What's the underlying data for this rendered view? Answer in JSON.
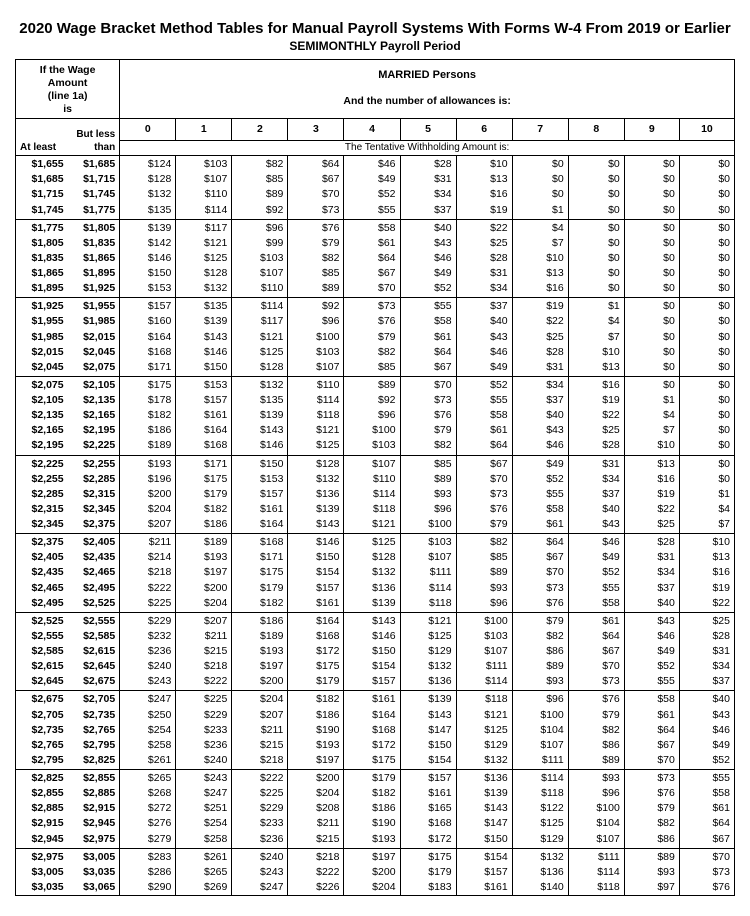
{
  "title": "2020 Wage Bracket Method Tables for Manual Payroll Systems With Forms W-4 From 2019 or Earlier",
  "subtitle": "SEMIMONTHLY Payroll Period",
  "wage_header_html": "If the <b>Wage Amount</b><br>(line 1a)<br>is",
  "filing_status": "MARRIED Persons",
  "allowance_line": "And the number of allowances is:",
  "atleast": "At least",
  "butless": "But less than",
  "tentative": "The Tentative Withholding Amount is:",
  "allowance_cols": [
    "0",
    "1",
    "2",
    "3",
    "4",
    "5",
    "6",
    "7",
    "8",
    "9",
    "10"
  ],
  "groups": [
    [
      {
        "a": "$1,655",
        "b": "$1,685",
        "v": [
          "$124",
          "$103",
          "$82",
          "$64",
          "$46",
          "$28",
          "$10",
          "$0",
          "$0",
          "$0",
          "$0"
        ]
      },
      {
        "a": "$1,685",
        "b": "$1,715",
        "v": [
          "$128",
          "$107",
          "$85",
          "$67",
          "$49",
          "$31",
          "$13",
          "$0",
          "$0",
          "$0",
          "$0"
        ]
      },
      {
        "a": "$1,715",
        "b": "$1,745",
        "v": [
          "$132",
          "$110",
          "$89",
          "$70",
          "$52",
          "$34",
          "$16",
          "$0",
          "$0",
          "$0",
          "$0"
        ]
      },
      {
        "a": "$1,745",
        "b": "$1,775",
        "v": [
          "$135",
          "$114",
          "$92",
          "$73",
          "$55",
          "$37",
          "$19",
          "$1",
          "$0",
          "$0",
          "$0"
        ]
      }
    ],
    [
      {
        "a": "$1,775",
        "b": "$1,805",
        "v": [
          "$139",
          "$117",
          "$96",
          "$76",
          "$58",
          "$40",
          "$22",
          "$4",
          "$0",
          "$0",
          "$0"
        ]
      },
      {
        "a": "$1,805",
        "b": "$1,835",
        "v": [
          "$142",
          "$121",
          "$99",
          "$79",
          "$61",
          "$43",
          "$25",
          "$7",
          "$0",
          "$0",
          "$0"
        ]
      },
      {
        "a": "$1,835",
        "b": "$1,865",
        "v": [
          "$146",
          "$125",
          "$103",
          "$82",
          "$64",
          "$46",
          "$28",
          "$10",
          "$0",
          "$0",
          "$0"
        ]
      },
      {
        "a": "$1,865",
        "b": "$1,895",
        "v": [
          "$150",
          "$128",
          "$107",
          "$85",
          "$67",
          "$49",
          "$31",
          "$13",
          "$0",
          "$0",
          "$0"
        ]
      },
      {
        "a": "$1,895",
        "b": "$1,925",
        "v": [
          "$153",
          "$132",
          "$110",
          "$89",
          "$70",
          "$52",
          "$34",
          "$16",
          "$0",
          "$0",
          "$0"
        ]
      }
    ],
    [
      {
        "a": "$1,925",
        "b": "$1,955",
        "v": [
          "$157",
          "$135",
          "$114",
          "$92",
          "$73",
          "$55",
          "$37",
          "$19",
          "$1",
          "$0",
          "$0"
        ]
      },
      {
        "a": "$1,955",
        "b": "$1,985",
        "v": [
          "$160",
          "$139",
          "$117",
          "$96",
          "$76",
          "$58",
          "$40",
          "$22",
          "$4",
          "$0",
          "$0"
        ]
      },
      {
        "a": "$1,985",
        "b": "$2,015",
        "v": [
          "$164",
          "$143",
          "$121",
          "$100",
          "$79",
          "$61",
          "$43",
          "$25",
          "$7",
          "$0",
          "$0"
        ]
      },
      {
        "a": "$2,015",
        "b": "$2,045",
        "v": [
          "$168",
          "$146",
          "$125",
          "$103",
          "$82",
          "$64",
          "$46",
          "$28",
          "$10",
          "$0",
          "$0"
        ]
      },
      {
        "a": "$2,045",
        "b": "$2,075",
        "v": [
          "$171",
          "$150",
          "$128",
          "$107",
          "$85",
          "$67",
          "$49",
          "$31",
          "$13",
          "$0",
          "$0"
        ]
      }
    ],
    [
      {
        "a": "$2,075",
        "b": "$2,105",
        "v": [
          "$175",
          "$153",
          "$132",
          "$110",
          "$89",
          "$70",
          "$52",
          "$34",
          "$16",
          "$0",
          "$0"
        ]
      },
      {
        "a": "$2,105",
        "b": "$2,135",
        "v": [
          "$178",
          "$157",
          "$135",
          "$114",
          "$92",
          "$73",
          "$55",
          "$37",
          "$19",
          "$1",
          "$0"
        ]
      },
      {
        "a": "$2,135",
        "b": "$2,165",
        "v": [
          "$182",
          "$161",
          "$139",
          "$118",
          "$96",
          "$76",
          "$58",
          "$40",
          "$22",
          "$4",
          "$0"
        ]
      },
      {
        "a": "$2,165",
        "b": "$2,195",
        "v": [
          "$186",
          "$164",
          "$143",
          "$121",
          "$100",
          "$79",
          "$61",
          "$43",
          "$25",
          "$7",
          "$0"
        ]
      },
      {
        "a": "$2,195",
        "b": "$2,225",
        "v": [
          "$189",
          "$168",
          "$146",
          "$125",
          "$103",
          "$82",
          "$64",
          "$46",
          "$28",
          "$10",
          "$0"
        ]
      }
    ],
    [
      {
        "a": "$2,225",
        "b": "$2,255",
        "v": [
          "$193",
          "$171",
          "$150",
          "$128",
          "$107",
          "$85",
          "$67",
          "$49",
          "$31",
          "$13",
          "$0"
        ]
      },
      {
        "a": "$2,255",
        "b": "$2,285",
        "v": [
          "$196",
          "$175",
          "$153",
          "$132",
          "$110",
          "$89",
          "$70",
          "$52",
          "$34",
          "$16",
          "$0"
        ]
      },
      {
        "a": "$2,285",
        "b": "$2,315",
        "v": [
          "$200",
          "$179",
          "$157",
          "$136",
          "$114",
          "$93",
          "$73",
          "$55",
          "$37",
          "$19",
          "$1"
        ]
      },
      {
        "a": "$2,315",
        "b": "$2,345",
        "v": [
          "$204",
          "$182",
          "$161",
          "$139",
          "$118",
          "$96",
          "$76",
          "$58",
          "$40",
          "$22",
          "$4"
        ]
      },
      {
        "a": "$2,345",
        "b": "$2,375",
        "v": [
          "$207",
          "$186",
          "$164",
          "$143",
          "$121",
          "$100",
          "$79",
          "$61",
          "$43",
          "$25",
          "$7"
        ]
      }
    ],
    [
      {
        "a": "$2,375",
        "b": "$2,405",
        "v": [
          "$211",
          "$189",
          "$168",
          "$146",
          "$125",
          "$103",
          "$82",
          "$64",
          "$46",
          "$28",
          "$10"
        ]
      },
      {
        "a": "$2,405",
        "b": "$2,435",
        "v": [
          "$214",
          "$193",
          "$171",
          "$150",
          "$128",
          "$107",
          "$85",
          "$67",
          "$49",
          "$31",
          "$13"
        ]
      },
      {
        "a": "$2,435",
        "b": "$2,465",
        "v": [
          "$218",
          "$197",
          "$175",
          "$154",
          "$132",
          "$111",
          "$89",
          "$70",
          "$52",
          "$34",
          "$16"
        ]
      },
      {
        "a": "$2,465",
        "b": "$2,495",
        "v": [
          "$222",
          "$200",
          "$179",
          "$157",
          "$136",
          "$114",
          "$93",
          "$73",
          "$55",
          "$37",
          "$19"
        ]
      },
      {
        "a": "$2,495",
        "b": "$2,525",
        "v": [
          "$225",
          "$204",
          "$182",
          "$161",
          "$139",
          "$118",
          "$96",
          "$76",
          "$58",
          "$40",
          "$22"
        ]
      }
    ],
    [
      {
        "a": "$2,525",
        "b": "$2,555",
        "v": [
          "$229",
          "$207",
          "$186",
          "$164",
          "$143",
          "$121",
          "$100",
          "$79",
          "$61",
          "$43",
          "$25"
        ]
      },
      {
        "a": "$2,555",
        "b": "$2,585",
        "v": [
          "$232",
          "$211",
          "$189",
          "$168",
          "$146",
          "$125",
          "$103",
          "$82",
          "$64",
          "$46",
          "$28"
        ]
      },
      {
        "a": "$2,585",
        "b": "$2,615",
        "v": [
          "$236",
          "$215",
          "$193",
          "$172",
          "$150",
          "$129",
          "$107",
          "$86",
          "$67",
          "$49",
          "$31"
        ]
      },
      {
        "a": "$2,615",
        "b": "$2,645",
        "v": [
          "$240",
          "$218",
          "$197",
          "$175",
          "$154",
          "$132",
          "$111",
          "$89",
          "$70",
          "$52",
          "$34"
        ]
      },
      {
        "a": "$2,645",
        "b": "$2,675",
        "v": [
          "$243",
          "$222",
          "$200",
          "$179",
          "$157",
          "$136",
          "$114",
          "$93",
          "$73",
          "$55",
          "$37"
        ]
      }
    ],
    [
      {
        "a": "$2,675",
        "b": "$2,705",
        "v": [
          "$247",
          "$225",
          "$204",
          "$182",
          "$161",
          "$139",
          "$118",
          "$96",
          "$76",
          "$58",
          "$40"
        ]
      },
      {
        "a": "$2,705",
        "b": "$2,735",
        "v": [
          "$250",
          "$229",
          "$207",
          "$186",
          "$164",
          "$143",
          "$121",
          "$100",
          "$79",
          "$61",
          "$43"
        ]
      },
      {
        "a": "$2,735",
        "b": "$2,765",
        "v": [
          "$254",
          "$233",
          "$211",
          "$190",
          "$168",
          "$147",
          "$125",
          "$104",
          "$82",
          "$64",
          "$46"
        ]
      },
      {
        "a": "$2,765",
        "b": "$2,795",
        "v": [
          "$258",
          "$236",
          "$215",
          "$193",
          "$172",
          "$150",
          "$129",
          "$107",
          "$86",
          "$67",
          "$49"
        ]
      },
      {
        "a": "$2,795",
        "b": "$2,825",
        "v": [
          "$261",
          "$240",
          "$218",
          "$197",
          "$175",
          "$154",
          "$132",
          "$111",
          "$89",
          "$70",
          "$52"
        ]
      }
    ],
    [
      {
        "a": "$2,825",
        "b": "$2,855",
        "v": [
          "$265",
          "$243",
          "$222",
          "$200",
          "$179",
          "$157",
          "$136",
          "$114",
          "$93",
          "$73",
          "$55"
        ]
      },
      {
        "a": "$2,855",
        "b": "$2,885",
        "v": [
          "$268",
          "$247",
          "$225",
          "$204",
          "$182",
          "$161",
          "$139",
          "$118",
          "$96",
          "$76",
          "$58"
        ]
      },
      {
        "a": "$2,885",
        "b": "$2,915",
        "v": [
          "$272",
          "$251",
          "$229",
          "$208",
          "$186",
          "$165",
          "$143",
          "$122",
          "$100",
          "$79",
          "$61"
        ]
      },
      {
        "a": "$2,915",
        "b": "$2,945",
        "v": [
          "$276",
          "$254",
          "$233",
          "$211",
          "$190",
          "$168",
          "$147",
          "$125",
          "$104",
          "$82",
          "$64"
        ]
      },
      {
        "a": "$2,945",
        "b": "$2,975",
        "v": [
          "$279",
          "$258",
          "$236",
          "$215",
          "$193",
          "$172",
          "$150",
          "$129",
          "$107",
          "$86",
          "$67"
        ]
      }
    ],
    [
      {
        "a": "$2,975",
        "b": "$3,005",
        "v": [
          "$283",
          "$261",
          "$240",
          "$218",
          "$197",
          "$175",
          "$154",
          "$132",
          "$111",
          "$89",
          "$70"
        ]
      },
      {
        "a": "$3,005",
        "b": "$3,035",
        "v": [
          "$286",
          "$265",
          "$243",
          "$222",
          "$200",
          "$179",
          "$157",
          "$136",
          "$114",
          "$93",
          "$73"
        ]
      },
      {
        "a": "$3,035",
        "b": "$3,065",
        "v": [
          "$290",
          "$269",
          "$247",
          "$226",
          "$204",
          "$183",
          "$161",
          "$140",
          "$118",
          "$97",
          "$76"
        ]
      }
    ]
  ]
}
